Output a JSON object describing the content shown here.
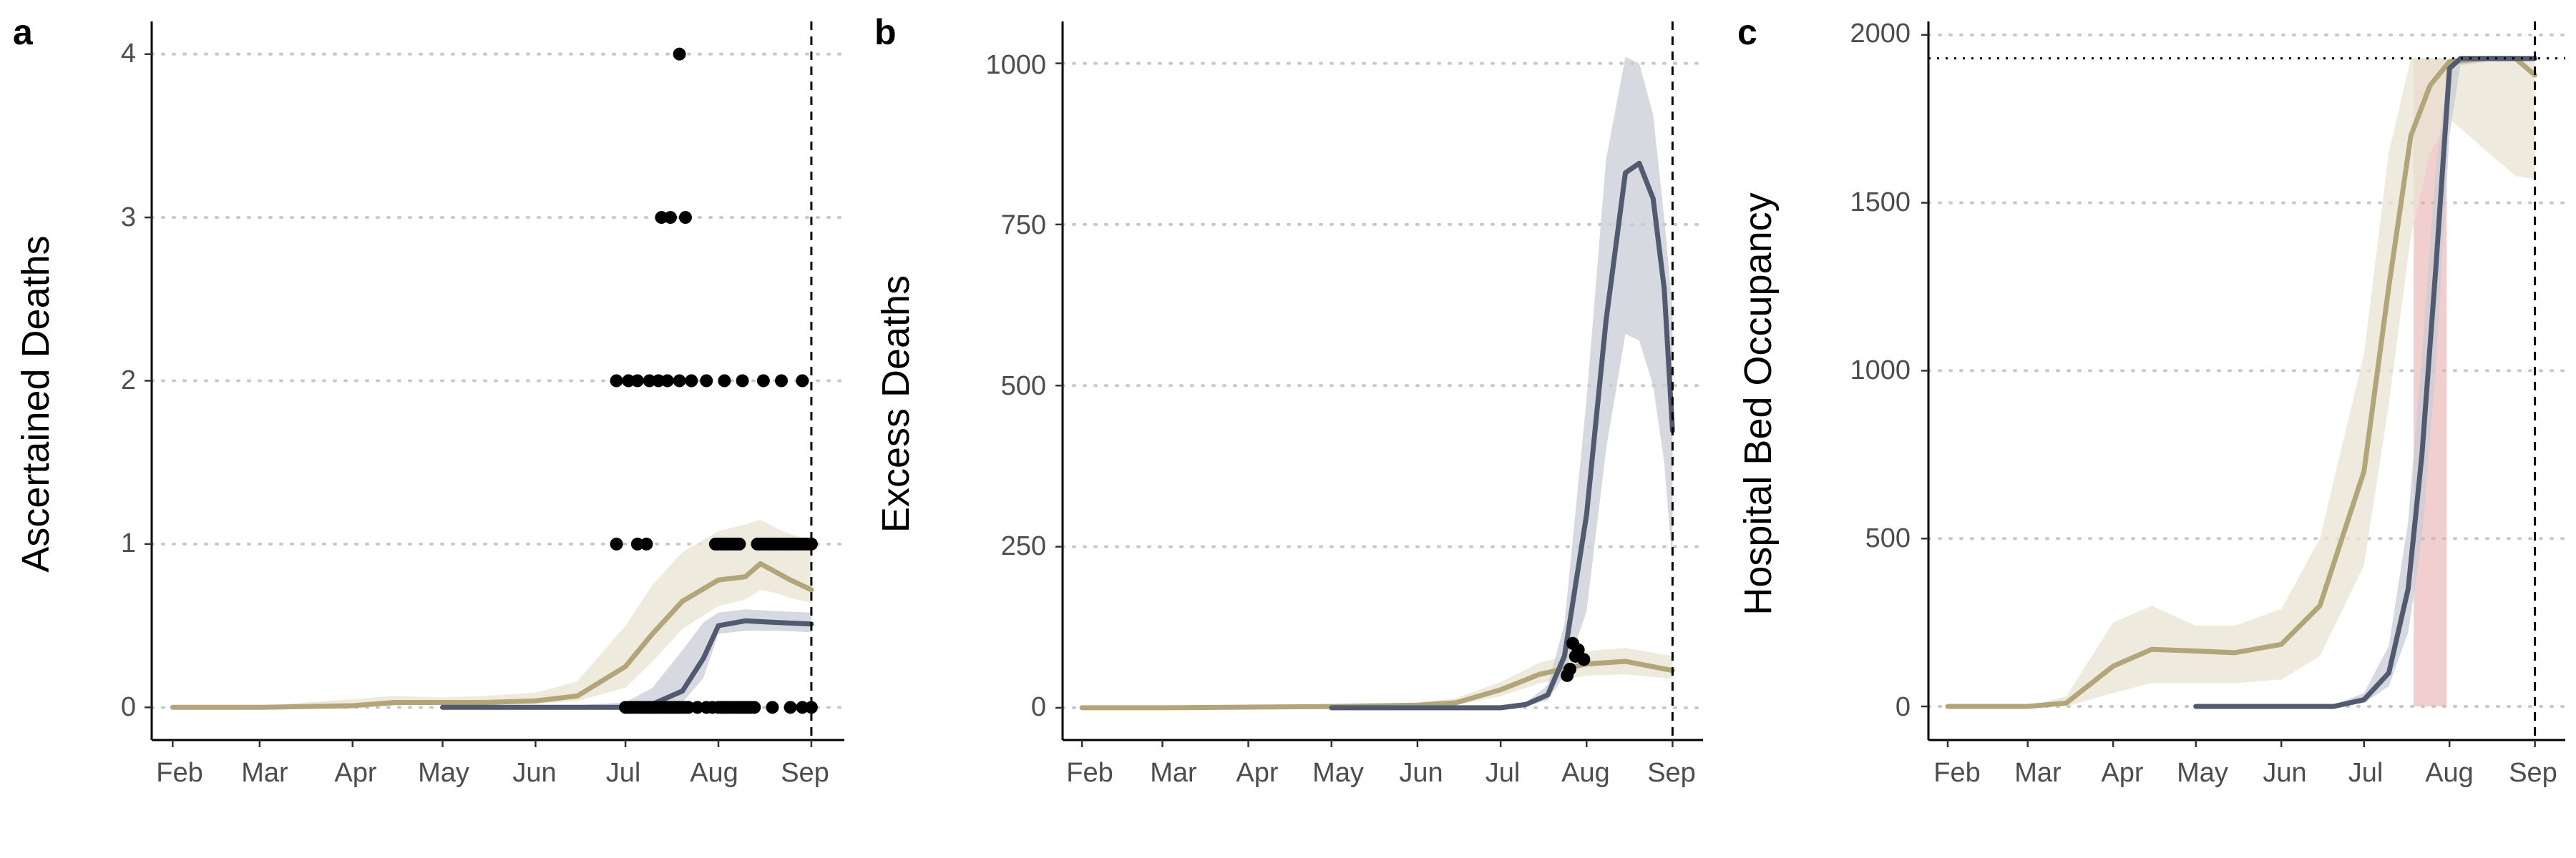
{
  "colors": {
    "model_a": "#b3a57a",
    "model_a_band": "#e8e4d3",
    "model_b": "#525a70",
    "model_b_band": "#c9ccd6",
    "points": "#000000",
    "highlight": "#e8a8a8",
    "grid": "#c8c8c8"
  },
  "chart_data": [
    {
      "type": "line",
      "panel": "a",
      "ylabel": "Ascertained Deaths",
      "xlabel": "",
      "x_ticks": [
        "Feb",
        "Mar",
        "Apr",
        "May",
        "Jun",
        "Jul",
        "Aug",
        "Sep"
      ],
      "x_tick_dates": [
        "2020-02-01",
        "2020-03-01",
        "2020-04-01",
        "2020-05-01",
        "2020-06-01",
        "2020-07-01",
        "2020-08-01",
        "2020-09-01"
      ],
      "xlim": [
        "2020-01-25",
        "2020-09-12"
      ],
      "y_ticks": [
        0,
        1,
        2,
        3,
        4
      ],
      "ylim": [
        -0.2,
        4.2
      ],
      "grid": "horizontal dotted",
      "vline": "2020-09-01",
      "series": [
        {
          "style": "line-with-band",
          "color": "model_a",
          "x": [
            "2020-02-01",
            "2020-03-01",
            "2020-04-01",
            "2020-04-15",
            "2020-05-01",
            "2020-05-15",
            "2020-06-01",
            "2020-06-15",
            "2020-07-01",
            "2020-07-10",
            "2020-07-20",
            "2020-08-01",
            "2020-08-10",
            "2020-08-15",
            "2020-08-20",
            "2020-08-25",
            "2020-09-01"
          ],
          "y": [
            0,
            0,
            0.01,
            0.03,
            0.03,
            0.03,
            0.04,
            0.07,
            0.25,
            0.45,
            0.65,
            0.78,
            0.8,
            0.88,
            0.83,
            0.78,
            0.72
          ],
          "lower": [
            0,
            0,
            0,
            0.01,
            0.02,
            0.02,
            0.02,
            0.04,
            0.12,
            0.28,
            0.48,
            0.62,
            0.66,
            0.72,
            0.7,
            0.67,
            0.64
          ],
          "upper": [
            0.01,
            0.01,
            0.05,
            0.07,
            0.06,
            0.07,
            0.09,
            0.16,
            0.5,
            0.75,
            0.95,
            1.08,
            1.12,
            1.15,
            1.1,
            1.06,
            1.02
          ]
        },
        {
          "style": "line-with-band",
          "color": "model_b",
          "x": [
            "2020-05-01",
            "2020-06-01",
            "2020-07-01",
            "2020-07-10",
            "2020-07-20",
            "2020-07-27",
            "2020-08-01",
            "2020-08-10",
            "2020-08-20",
            "2020-09-01"
          ],
          "y": [
            0,
            0,
            0,
            0.02,
            0.1,
            0.3,
            0.5,
            0.53,
            0.52,
            0.51
          ],
          "lower": [
            0,
            0,
            0,
            0,
            0.03,
            0.18,
            0.45,
            0.47,
            0.47,
            0.46
          ],
          "upper": [
            0,
            0,
            0.03,
            0.12,
            0.35,
            0.52,
            0.58,
            0.6,
            0.59,
            0.58
          ]
        }
      ],
      "points": {
        "x": [
          "2020-06-28",
          "2020-07-02",
          "2020-07-05",
          "2020-07-09",
          "2020-07-12",
          "2020-07-15",
          "2020-07-19",
          "2020-07-23",
          "2020-07-28",
          "2020-08-03",
          "2020-08-09",
          "2020-08-16",
          "2020-08-22",
          "2020-08-29",
          "2020-07-13",
          "2020-07-16",
          "2020-07-21",
          "2020-07-19",
          "2020-06-28",
          "2020-07-05",
          "2020-07-08",
          "2020-07-31",
          "2020-08-01",
          "2020-08-02",
          "2020-08-03",
          "2020-08-04",
          "2020-08-05",
          "2020-08-06",
          "2020-08-07",
          "2020-08-08",
          "2020-08-14",
          "2020-08-15",
          "2020-08-16",
          "2020-08-17",
          "2020-08-18",
          "2020-08-19",
          "2020-08-20",
          "2020-08-21",
          "2020-08-22",
          "2020-08-23",
          "2020-08-24",
          "2020-08-25",
          "2020-08-26",
          "2020-08-27",
          "2020-08-28",
          "2020-08-29",
          "2020-08-30",
          "2020-08-31",
          "2020-09-01",
          "2020-07-01",
          "2020-07-02",
          "2020-07-03",
          "2020-07-04",
          "2020-07-05",
          "2020-07-06",
          "2020-07-07",
          "2020-07-08",
          "2020-07-09",
          "2020-07-10",
          "2020-07-11",
          "2020-07-12",
          "2020-07-13",
          "2020-07-14",
          "2020-07-15",
          "2020-07-16",
          "2020-07-17",
          "2020-07-18",
          "2020-07-19",
          "2020-07-20",
          "2020-07-21",
          "2020-07-22",
          "2020-07-25",
          "2020-07-28",
          "2020-07-30",
          "2020-08-01",
          "2020-08-02",
          "2020-08-03",
          "2020-08-04",
          "2020-08-05",
          "2020-08-06",
          "2020-08-07",
          "2020-08-08",
          "2020-08-09",
          "2020-08-10",
          "2020-08-11",
          "2020-08-12",
          "2020-08-13",
          "2020-08-19",
          "2020-08-25",
          "2020-08-29",
          "2020-09-01"
        ],
        "y": [
          2,
          2,
          2,
          2,
          2,
          2,
          2,
          2,
          2,
          2,
          2,
          2,
          2,
          2,
          3,
          3,
          3,
          4,
          1,
          1,
          1,
          1,
          1,
          1,
          1,
          1,
          1,
          1,
          1,
          1,
          1,
          1,
          1,
          1,
          1,
          1,
          1,
          1,
          1,
          1,
          1,
          1,
          1,
          1,
          1,
          1,
          1,
          1,
          1,
          0,
          0,
          0,
          0,
          0,
          0,
          0,
          0,
          0,
          0,
          0,
          0,
          0,
          0,
          0,
          0,
          0,
          0,
          0,
          0,
          0,
          0,
          0,
          0,
          0,
          0,
          0,
          0,
          0,
          0,
          0,
          0,
          0,
          0,
          0,
          0,
          0,
          0,
          0,
          0,
          0,
          0
        ]
      }
    },
    {
      "type": "line",
      "panel": "b",
      "ylabel": "Excess Deaths",
      "xlabel": "",
      "x_ticks": [
        "Feb",
        "Mar",
        "Apr",
        "May",
        "Jun",
        "Jul",
        "Aug",
        "Sep"
      ],
      "x_tick_dates": [
        "2020-02-01",
        "2020-03-01",
        "2020-04-01",
        "2020-05-01",
        "2020-06-01",
        "2020-07-01",
        "2020-08-01",
        "2020-09-01"
      ],
      "xlim": [
        "2020-01-25",
        "2020-09-12"
      ],
      "y_ticks": [
        0,
        250,
        500,
        750,
        1000
      ],
      "ylim": [
        -50,
        1065
      ],
      "grid": "horizontal dotted",
      "vline": "2020-09-01",
      "series": [
        {
          "style": "line-with-band",
          "color": "model_a",
          "x": [
            "2020-02-01",
            "2020-03-01",
            "2020-04-01",
            "2020-05-01",
            "2020-06-01",
            "2020-06-15",
            "2020-07-01",
            "2020-07-15",
            "2020-08-01",
            "2020-08-15",
            "2020-09-01"
          ],
          "y": [
            0,
            0,
            1,
            2,
            4,
            8,
            28,
            52,
            68,
            72,
            58
          ],
          "lower": [
            0,
            0,
            0,
            1,
            2,
            4,
            18,
            38,
            50,
            52,
            45
          ],
          "upper": [
            0,
            1,
            3,
            4,
            8,
            15,
            40,
            70,
            88,
            93,
            80
          ]
        },
        {
          "style": "line-with-band",
          "color": "model_b",
          "x": [
            "2020-05-01",
            "2020-06-01",
            "2020-07-01",
            "2020-07-10",
            "2020-07-18",
            "2020-07-24",
            "2020-08-01",
            "2020-08-08",
            "2020-08-15",
            "2020-08-20",
            "2020-08-25",
            "2020-08-29",
            "2020-09-01"
          ],
          "y": [
            0,
            0,
            0,
            5,
            20,
            80,
            300,
            600,
            830,
            845,
            790,
            650,
            430
          ],
          "lower": [
            0,
            0,
            0,
            2,
            12,
            50,
            150,
            400,
            580,
            570,
            500,
            380,
            220
          ],
          "upper": [
            0,
            0,
            1,
            8,
            35,
            130,
            480,
            850,
            1010,
            1000,
            920,
            760,
            620
          ]
        }
      ],
      "points": {
        "x": [
          "2020-07-25",
          "2020-07-26",
          "2020-07-27",
          "2020-07-28",
          "2020-07-29",
          "2020-07-31"
        ],
        "y": [
          50,
          60,
          100,
          80,
          90,
          75
        ]
      }
    },
    {
      "type": "line",
      "panel": "c",
      "ylabel": "Hospital Bed Occupancy",
      "xlabel": "",
      "x_ticks": [
        "Feb",
        "Mar",
        "Apr",
        "May",
        "Jun",
        "Jul",
        "Aug",
        "Sep"
      ],
      "x_tick_dates": [
        "2020-02-01",
        "2020-03-01",
        "2020-04-01",
        "2020-05-01",
        "2020-06-01",
        "2020-07-01",
        "2020-08-01",
        "2020-09-01"
      ],
      "xlim": [
        "2020-01-25",
        "2020-09-12"
      ],
      "y_ticks": [
        0,
        500,
        1000,
        1500,
        2000
      ],
      "ylim": [
        -100,
        2040
      ],
      "grid": "horizontal dotted",
      "vline": "2020-09-01",
      "hline": 1930,
      "highlight": {
        "from": "2020-07-19",
        "to": "2020-07-31"
      },
      "series": [
        {
          "style": "line-with-band",
          "color": "model_a",
          "x": [
            "2020-02-01",
            "2020-03-01",
            "2020-03-15",
            "2020-04-01",
            "2020-04-15",
            "2020-05-01",
            "2020-05-15",
            "2020-06-01",
            "2020-06-15",
            "2020-07-01",
            "2020-07-10",
            "2020-07-18",
            "2020-07-25",
            "2020-08-01",
            "2020-08-15",
            "2020-08-25",
            "2020-09-01"
          ],
          "y": [
            0,
            0,
            10,
            120,
            170,
            165,
            160,
            185,
            300,
            700,
            1250,
            1700,
            1850,
            1920,
            1930,
            1930,
            1880
          ],
          "lower": [
            0,
            0,
            0,
            40,
            70,
            70,
            70,
            80,
            150,
            420,
            900,
            1400,
            1650,
            1750,
            1650,
            1580,
            1570
          ],
          "upper": [
            0,
            0,
            30,
            250,
            300,
            240,
            240,
            290,
            500,
            1050,
            1650,
            1930,
            1930,
            1930,
            1930,
            1930,
            1930
          ]
        },
        {
          "style": "line-with-band",
          "color": "model_b",
          "x": [
            "2020-05-01",
            "2020-06-01",
            "2020-06-20",
            "2020-07-01",
            "2020-07-10",
            "2020-07-17",
            "2020-07-22",
            "2020-07-27",
            "2020-08-01",
            "2020-08-05",
            "2020-08-15",
            "2020-08-25",
            "2020-09-01"
          ],
          "y": [
            0,
            0,
            0,
            20,
            100,
            350,
            750,
            1300,
            1900,
            1930,
            1930,
            1930,
            1930
          ],
          "lower": [
            0,
            0,
            0,
            10,
            60,
            220,
            500,
            1000,
            1700,
            1910,
            1920,
            1920,
            1920
          ],
          "upper": [
            0,
            0,
            5,
            40,
            180,
            550,
            1050,
            1600,
            1930,
            1930,
            1935,
            1935,
            1935
          ]
        }
      ]
    }
  ],
  "panels": [
    {
      "letter": "a",
      "ylabel": "Ascertained Deaths",
      "x_ticks": [
        "Feb",
        "Mar",
        "Apr",
        "May",
        "Jun",
        "Jul",
        "Aug",
        "Sep"
      ],
      "y_ticks": [
        "0",
        "1",
        "2",
        "3",
        "4"
      ]
    },
    {
      "letter": "b",
      "ylabel": "Excess Deaths",
      "x_ticks": [
        "Feb",
        "Mar",
        "Apr",
        "May",
        "Jun",
        "Jul",
        "Aug",
        "Sep"
      ],
      "y_ticks": [
        "0",
        "250",
        "500",
        "750",
        "1000"
      ]
    },
    {
      "letter": "c",
      "ylabel": "Hospital Bed Occupancy",
      "x_ticks": [
        "Feb",
        "Mar",
        "Apr",
        "May",
        "Jun",
        "Jul",
        "Aug",
        "Sep"
      ],
      "y_ticks": [
        "0",
        "500",
        "1000",
        "1500",
        "2000"
      ]
    }
  ]
}
